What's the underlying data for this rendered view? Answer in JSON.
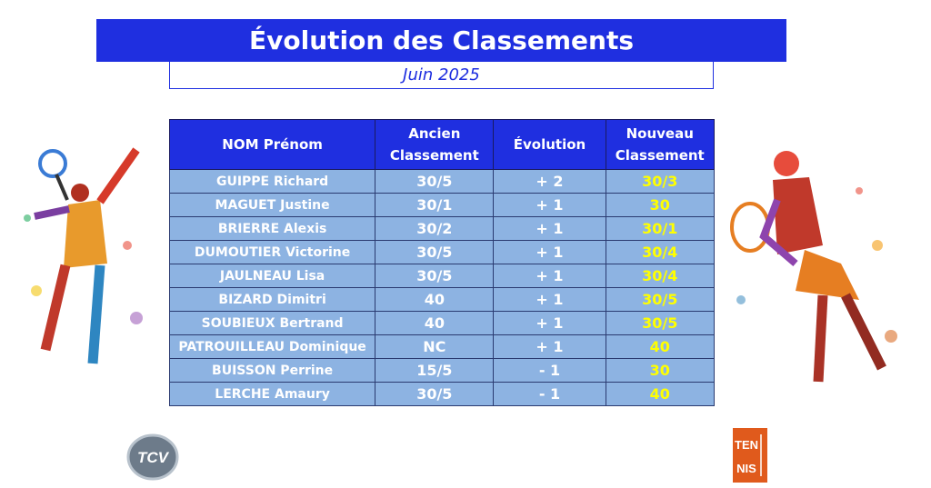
{
  "header": {
    "title": "Évolution des Classements",
    "subtitle": "Juin 2025"
  },
  "table": {
    "columns": [
      "NOM Prénom",
      "Ancien Classement",
      "Évolution",
      "Nouveau Classement"
    ],
    "rows": [
      [
        "GUIPPE Richard",
        "30/5",
        "+ 2",
        "30/3"
      ],
      [
        "MAGUET Justine",
        "30/1",
        "+ 1",
        "30"
      ],
      [
        "BRIERRE Alexis",
        "30/2",
        "+ 1",
        "30/1"
      ],
      [
        "DUMOUTIER Victorine",
        "30/5",
        "+ 1",
        "30/4"
      ],
      [
        "JAULNEAU Lisa",
        "30/5",
        "+ 1",
        "30/4"
      ],
      [
        "BIZARD Dimitri",
        "40",
        "+ 1",
        "30/5"
      ],
      [
        "SOUBIEUX Bertrand",
        "40",
        "+ 1",
        "30/5"
      ],
      [
        "PATROUILLEAU Dominique",
        "NC",
        "+ 1",
        "40"
      ],
      [
        "BUISSON Perrine",
        "15/5",
        "- 1",
        "30"
      ],
      [
        "LERCHE Amaury",
        "30/5",
        "- 1",
        "40"
      ]
    ]
  },
  "logos": {
    "left": "TCV",
    "right": [
      "TEN",
      "NIS"
    ]
  }
}
